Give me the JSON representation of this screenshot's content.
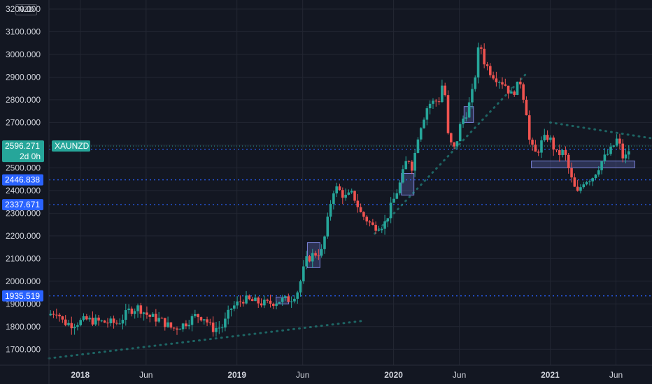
{
  "currency": "NZD",
  "chart_data": {
    "type": "candlestick",
    "symbol": "XAUNZD",
    "current_price": "2596.271",
    "countdown": "2d 0h",
    "y_ticks": [
      "3200.000",
      "3100.000",
      "3000.000",
      "2900.000",
      "2800.000",
      "2700.000",
      "2600.000",
      "2500.000",
      "2400.000",
      "2300.000",
      "2200.000",
      "2100.000",
      "2000.000",
      "1900.000",
      "1800.000",
      "1700.000"
    ],
    "x_ticks": [
      {
        "label": "2018",
        "t": 2018.0,
        "bold": true
      },
      {
        "label": "Jun",
        "t": 2018.42,
        "bold": false
      },
      {
        "label": "2019",
        "t": 2019.0,
        "bold": true
      },
      {
        "label": "Jun",
        "t": 2019.42,
        "bold": false
      },
      {
        "label": "2020",
        "t": 2020.0,
        "bold": true
      },
      {
        "label": "Jun",
        "t": 2020.42,
        "bold": false
      },
      {
        "label": "2021",
        "t": 2021.0,
        "bold": true
      },
      {
        "label": "Jun",
        "t": 2021.42,
        "bold": false
      }
    ],
    "ylim": [
      1630,
      3240
    ],
    "xlim": [
      2017.8,
      2021.65
    ],
    "horizontal_levels": [
      {
        "label": "2581.400",
        "value": 2581.4,
        "style": "dotted"
      },
      {
        "label": "2446.838",
        "value": 2446.838,
        "style": "dotted"
      },
      {
        "label": "2337.671",
        "value": 2337.671,
        "style": "dotted"
      },
      {
        "label": "1935.519",
        "value": 1935.519,
        "style": "dotted"
      }
    ],
    "price_path": [
      [
        2017.8,
        1850
      ],
      [
        2017.86,
        1870
      ],
      [
        2017.9,
        1820
      ],
      [
        2017.95,
        1810
      ],
      [
        2018.05,
        1830
      ],
      [
        2018.15,
        1820
      ],
      [
        2018.25,
        1815
      ],
      [
        2018.32,
        1870
      ],
      [
        2018.38,
        1885
      ],
      [
        2018.45,
        1845
      ],
      [
        2018.52,
        1830
      ],
      [
        2018.6,
        1790
      ],
      [
        2018.67,
        1810
      ],
      [
        2018.75,
        1850
      ],
      [
        2018.8,
        1840
      ],
      [
        2018.85,
        1790
      ],
      [
        2018.92,
        1800
      ],
      [
        2018.97,
        1880
      ],
      [
        2019.05,
        1920
      ],
      [
        2019.12,
        1910
      ],
      [
        2019.2,
        1900
      ],
      [
        2019.28,
        1915
      ],
      [
        2019.35,
        1920
      ],
      [
        2019.4,
        1960
      ],
      [
        2019.45,
        2090
      ],
      [
        2019.5,
        2120
      ],
      [
        2019.55,
        2130
      ],
      [
        2019.58,
        2230
      ],
      [
        2019.62,
        2400
      ],
      [
        2019.65,
        2410
      ],
      [
        2019.7,
        2370
      ],
      [
        2019.75,
        2385
      ],
      [
        2019.8,
        2300
      ],
      [
        2019.88,
        2240
      ],
      [
        2019.95,
        2250
      ],
      [
        2020.0,
        2340
      ],
      [
        2020.05,
        2430
      ],
      [
        2020.1,
        2550
      ],
      [
        2020.13,
        2500
      ],
      [
        2020.17,
        2660
      ],
      [
        2020.23,
        2780
      ],
      [
        2020.3,
        2800
      ],
      [
        2020.33,
        2900
      ],
      [
        2020.36,
        2620
      ],
      [
        2020.4,
        2580
      ],
      [
        2020.44,
        2700
      ],
      [
        2020.48,
        2750
      ],
      [
        2020.52,
        2850
      ],
      [
        2020.56,
        3070
      ],
      [
        2020.58,
        2980
      ],
      [
        2020.62,
        2930
      ],
      [
        2020.66,
        2900
      ],
      [
        2020.72,
        2870
      ],
      [
        2020.76,
        2820
      ],
      [
        2020.82,
        2880
      ],
      [
        2020.86,
        2740
      ],
      [
        2020.88,
        2600
      ],
      [
        2020.92,
        2560
      ],
      [
        2020.96,
        2620
      ],
      [
        2021.0,
        2640
      ],
      [
        2021.05,
        2560
      ],
      [
        2021.1,
        2570
      ],
      [
        2021.14,
        2460
      ],
      [
        2021.18,
        2380
      ],
      [
        2021.22,
        2440
      ],
      [
        2021.28,
        2460
      ],
      [
        2021.34,
        2530
      ],
      [
        2021.4,
        2580
      ],
      [
        2021.44,
        2630
      ],
      [
        2021.48,
        2530
      ],
      [
        2021.52,
        2590
      ]
    ],
    "trend_dotted": [
      {
        "from": [
          2017.8,
          1660
        ],
        "to": [
          2019.8,
          1825
        ]
      },
      {
        "from": [
          2019.88,
          2210
        ],
        "to": [
          2020.84,
          2910
        ]
      },
      {
        "from": [
          2021.0,
          2700
        ],
        "to": [
          2021.65,
          2630
        ]
      }
    ],
    "zones": [
      {
        "t0": 2019.45,
        "t1": 2019.53,
        "p0": 2060,
        "p1": 2170
      },
      {
        "t0": 2019.25,
        "t1": 2019.33,
        "p0": 1900,
        "p1": 1930
      },
      {
        "t0": 2020.05,
        "t1": 2020.13,
        "p0": 2380,
        "p1": 2475
      },
      {
        "t0": 2020.45,
        "t1": 2020.51,
        "p0": 2700,
        "p1": 2770
      },
      {
        "t0": 2020.88,
        "t1": 2021.54,
        "p0": 2500,
        "p1": 2530
      }
    ]
  }
}
